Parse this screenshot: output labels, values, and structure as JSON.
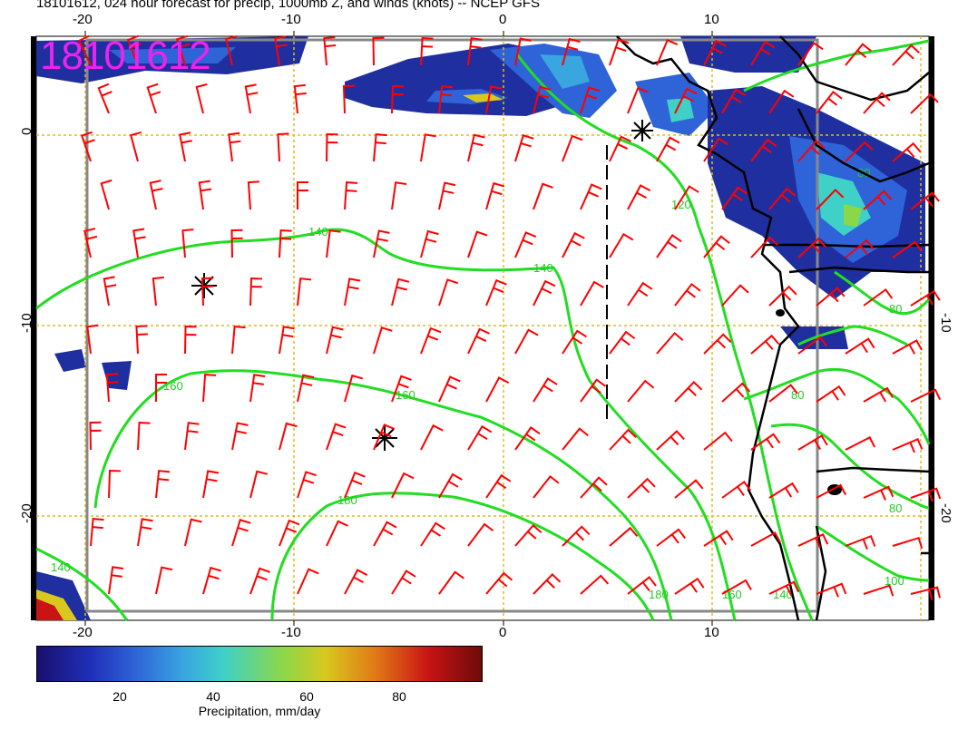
{
  "title": "18101612, 024 hour forecast for precip, 1000mb Z, and winds (knots) -- NCEP GFS",
  "stamp": "18101612",
  "axes": {
    "x_ticks_top": [
      "-20",
      "-10",
      "0",
      "10"
    ],
    "x_ticks_bottom": [
      "-20",
      "-10",
      "0",
      "10"
    ],
    "y_ticks_left": [
      "0",
      "-10",
      "-20"
    ],
    "y_ticks_right": [
      "-10",
      "-20"
    ]
  },
  "contour_labels": [
    "140",
    "140",
    "160",
    "180",
    "140",
    "160",
    "180",
    "120",
    "80",
    "80",
    "80",
    "100",
    "160",
    "140",
    "80"
  ],
  "colorbar": {
    "ticks": [
      "20",
      "40",
      "60",
      "80"
    ],
    "title": "Precipitation, mm/day"
  },
  "colors": {
    "wind_barbs": "#ff0000",
    "contours": "#22dd22",
    "coastline": "#000000",
    "stamp": "#ee22ee",
    "grid": "#ddbb22"
  }
}
